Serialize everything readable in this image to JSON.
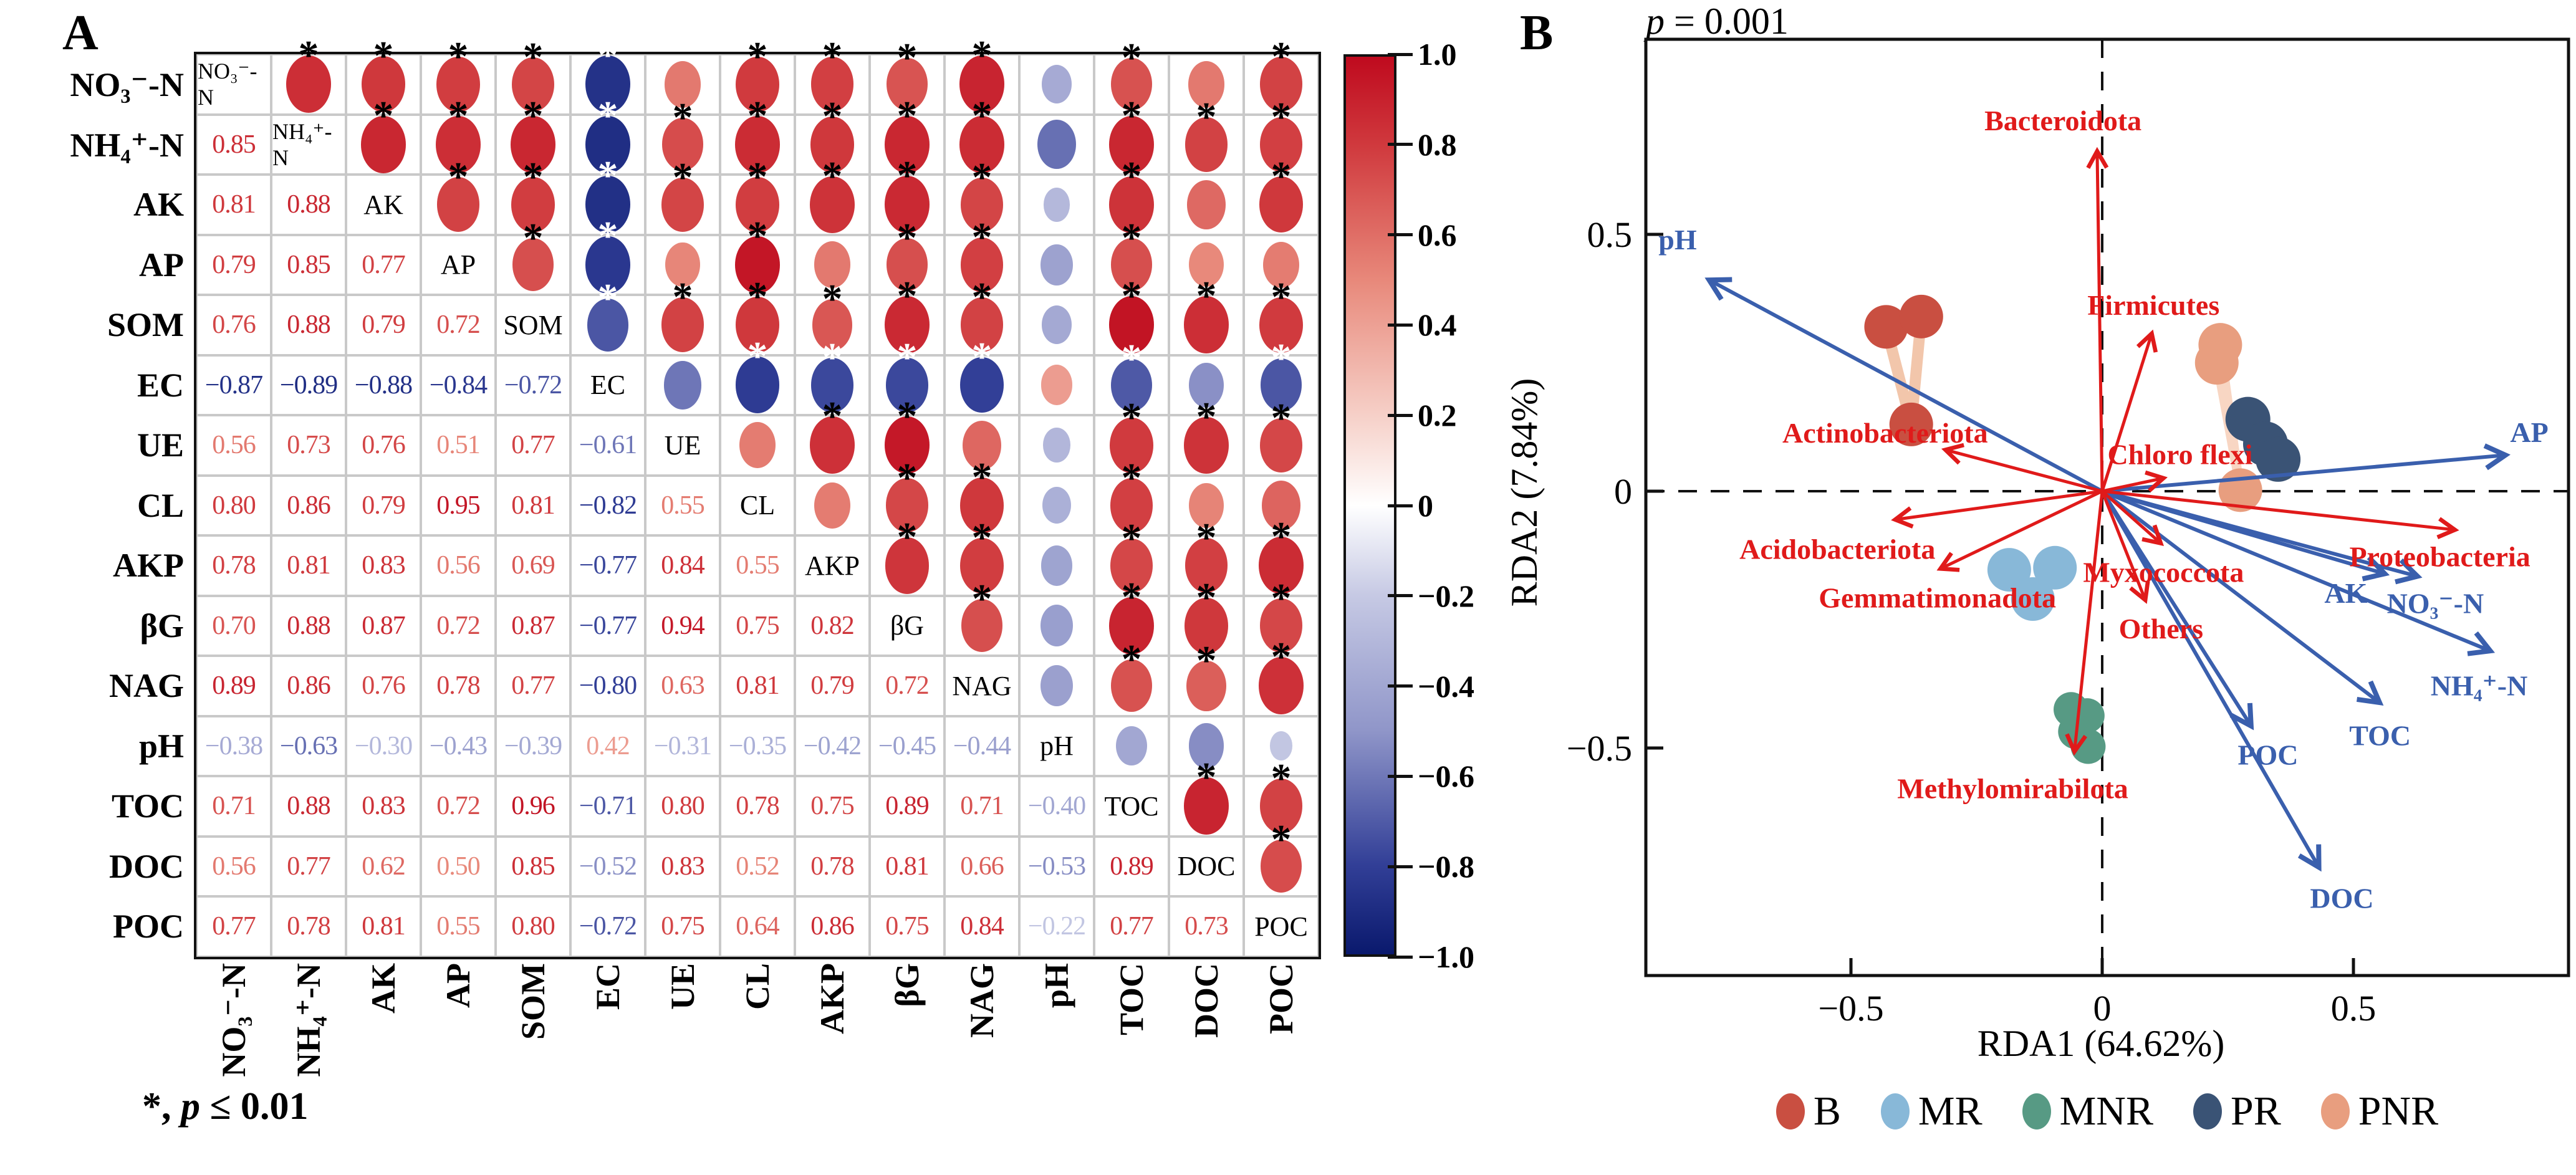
{
  "figure": {
    "panel_a_letter": "A",
    "panel_b_letter": "B"
  },
  "chart_data": [
    {
      "type": "heatmap",
      "name": "soil-property-correlation-matrix",
      "variables": [
        "NO₃⁻-N",
        "NH₄⁺-N",
        "AK",
        "AP",
        "SOM",
        "EC",
        "UE",
        "CL",
        "AKP",
        "βG",
        "NAG",
        "pH",
        "TOC",
        "DOC",
        "POC"
      ],
      "lower_triangle": [
        [],
        [
          0.85
        ],
        [
          0.81,
          0.88
        ],
        [
          0.79,
          0.85,
          0.77
        ],
        [
          0.76,
          0.88,
          0.79,
          0.72
        ],
        [
          -0.87,
          -0.89,
          -0.88,
          -0.84,
          -0.72
        ],
        [
          0.56,
          0.73,
          0.76,
          0.51,
          0.77,
          -0.61
        ],
        [
          0.8,
          0.86,
          0.79,
          0.95,
          0.81,
          -0.82,
          0.55
        ],
        [
          0.78,
          0.81,
          0.83,
          0.56,
          0.69,
          -0.77,
          0.84,
          0.55
        ],
        [
          0.7,
          0.88,
          0.87,
          0.72,
          0.87,
          -0.77,
          0.94,
          0.75,
          0.82
        ],
        [
          0.89,
          0.86,
          0.76,
          0.78,
          0.77,
          -0.8,
          0.63,
          0.81,
          0.79,
          0.72
        ],
        [
          -0.38,
          -0.63,
          -0.3,
          -0.43,
          -0.39,
          0.42,
          -0.31,
          -0.35,
          -0.42,
          -0.45,
          -0.44
        ],
        [
          0.71,
          0.88,
          0.83,
          0.72,
          0.96,
          -0.71,
          0.8,
          0.78,
          0.75,
          0.89,
          0.71,
          -0.4
        ],
        [
          0.56,
          0.77,
          0.62,
          0.5,
          0.85,
          -0.52,
          0.83,
          0.52,
          0.78,
          0.81,
          0.66,
          -0.53,
          0.89
        ],
        [
          0.77,
          0.78,
          0.81,
          0.55,
          0.8,
          -0.72,
          0.75,
          0.64,
          0.86,
          0.75,
          0.84,
          -0.22,
          0.77,
          0.73
        ]
      ],
      "sig_threshold": 0.66,
      "note_star": "*",
      "note_sep": ", ",
      "note_p": "p",
      "note_rest": " ≤ 0.01",
      "colorbar": {
        "min": -1,
        "max": 1,
        "stops": [
          {
            "v": 1,
            "c": "#bf0a1e"
          },
          {
            "v": 0.8,
            "c": "#d03a3e"
          },
          {
            "v": 0.5,
            "c": "#e8897b"
          },
          {
            "v": 0.2,
            "c": "#f6d0c8"
          },
          {
            "v": 0,
            "c": "#ffffff"
          },
          {
            "v": -0.2,
            "c": "#c6c9e4"
          },
          {
            "v": -0.5,
            "c": "#9096c9"
          },
          {
            "v": -0.8,
            "c": "#323f97"
          },
          {
            "v": -1,
            "c": "#0a196d"
          }
        ],
        "ticks": [
          {
            "v": 1,
            "label": "1.0"
          },
          {
            "v": 0.8,
            "label": "0.8"
          },
          {
            "v": 0.6,
            "label": "0.6"
          },
          {
            "v": 0.4,
            "label": "0.4"
          },
          {
            "v": 0.2,
            "label": "0.2"
          },
          {
            "v": 0,
            "label": "0"
          },
          {
            "v": -0.2,
            "label": "−0.2"
          },
          {
            "v": -0.4,
            "label": "−0.4"
          },
          {
            "v": -0.6,
            "label": "−0.6"
          },
          {
            "v": -0.8,
            "label": "−0.8"
          },
          {
            "v": -1,
            "label": "−1.0"
          }
        ]
      }
    },
    {
      "type": "scatter",
      "name": "rda-biplot",
      "title_p": "p",
      "title_rest": " = 0.001",
      "xlabel": "RDA1 (64.62%)",
      "ylabel": "RDA2 (7.84%)",
      "xlim": [
        -0.908,
        0.928
      ],
      "ylim": [
        -0.943,
        0.88
      ],
      "x_ticks": [
        {
          "v": -0.5,
          "label": "−0.5"
        },
        {
          "v": 0,
          "label": "0"
        },
        {
          "v": 0.5,
          "label": "0.5"
        }
      ],
      "y_ticks": [
        {
          "v": 0.5,
          "label": "0.5"
        },
        {
          "v": 0,
          "label": "0"
        },
        {
          "v": -0.5,
          "label": "−0.5"
        }
      ],
      "arrow_colors": {
        "env": "#3a5fad",
        "phyla": "#e01a1a"
      },
      "env_arrows": [
        {
          "name": "pH",
          "x": -0.78,
          "y": 0.41,
          "lx": -0.845,
          "ly": 0.49
        },
        {
          "name": "AP",
          "x": 0.8,
          "y": 0.07,
          "lx": 0.85,
          "ly": 0.115
        },
        {
          "name": "AK",
          "x": 0.56,
          "y": -0.16,
          "lx": 0.485,
          "ly": -0.198
        },
        {
          "name": "NO₃⁻-N",
          "x": 0.625,
          "y": -0.165,
          "lx": 0.663,
          "ly": -0.218
        },
        {
          "name": "NH₄⁺-N",
          "x": 0.77,
          "y": -0.31,
          "lx": 0.75,
          "ly": -0.378
        },
        {
          "name": "TOC",
          "x": 0.55,
          "y": -0.41,
          "lx": 0.553,
          "ly": -0.475
        },
        {
          "name": "POC",
          "x": 0.295,
          "y": -0.455,
          "lx": 0.33,
          "ly": -0.513
        },
        {
          "name": "DOC",
          "x": 0.43,
          "y": -0.73,
          "lx": 0.477,
          "ly": -0.792
        }
      ],
      "phyla_arrows": [
        {
          "name": "Bacteroidota",
          "x": -0.01,
          "y": 0.66,
          "lx": -0.078,
          "ly": 0.722
        },
        {
          "name": "Firmicutes",
          "x": 0.098,
          "y": 0.305,
          "lx": 0.102,
          "ly": 0.363
        },
        {
          "name": "Actinobacteriota",
          "x": -0.31,
          "y": 0.08,
          "lx": -0.432,
          "ly": 0.114
        },
        {
          "name": "Chloro flexi",
          "x": 0.12,
          "y": 0.025,
          "lx": 0.155,
          "ly": 0.072
        },
        {
          "name": "Proteobacteria",
          "x": 0.7,
          "y": -0.075,
          "lx": 0.672,
          "ly": -0.127
        },
        {
          "name": "Acidobacteriota",
          "x": -0.41,
          "y": -0.055,
          "lx": -0.527,
          "ly": -0.112
        },
        {
          "name": "Gemmatimonadota",
          "x": -0.32,
          "y": -0.15,
          "lx": -0.328,
          "ly": -0.207
        },
        {
          "name": "Myxococcota",
          "x": 0.115,
          "y": -0.1,
          "lx": 0.122,
          "ly": -0.157
        },
        {
          "name": "Others",
          "x": 0.085,
          "y": -0.21,
          "lx": 0.117,
          "ly": -0.267
        },
        {
          "name": "Methylomirabilota",
          "x": -0.055,
          "y": -0.505,
          "lx": -0.178,
          "ly": -0.578
        }
      ],
      "groups": [
        {
          "name": "B",
          "color": "#c94f41",
          "r": 35,
          "points": [
            [
              -0.43,
              0.32
            ],
            [
              -0.36,
              0.34
            ],
            [
              -0.38,
              0.13
            ]
          ],
          "spider": {
            "color": "#f2c6ab",
            "width": 18,
            "center": [
              -0.38,
              0.13
            ]
          }
        },
        {
          "name": "MR",
          "color": "#88b8d8",
          "r": 35,
          "points": [
            [
              -0.185,
              -0.153
            ],
            [
              -0.094,
              -0.149
            ],
            [
              -0.138,
              -0.21
            ]
          ]
        },
        {
          "name": "MNR",
          "color": "#579a84",
          "r": 28,
          "points": [
            [
              -0.062,
              -0.425
            ],
            [
              -0.03,
              -0.437
            ],
            [
              -0.053,
              -0.468
            ],
            [
              -0.028,
              -0.497
            ]
          ]
        },
        {
          "name": "PR",
          "color": "#3a5375",
          "r": 36,
          "points": [
            [
              0.29,
              0.14
            ],
            [
              0.325,
              0.092
            ],
            [
              0.35,
              0.062
            ]
          ]
        },
        {
          "name": "PNR",
          "color": "#e89e7f",
          "r": 35,
          "points": [
            [
              0.235,
              0.285
            ],
            [
              0.228,
              0.25
            ],
            [
              0.275,
              0.002
            ]
          ],
          "spider": {
            "color": "#f8d6c3",
            "width": 14,
            "center": [
              0.275,
              0.002
            ]
          }
        }
      ],
      "legend": [
        {
          "label": "B",
          "color": "#c94f41"
        },
        {
          "label": "MR",
          "color": "#88b8d8"
        },
        {
          "label": "MNR",
          "color": "#579a84"
        },
        {
          "label": "PR",
          "color": "#3a5375"
        },
        {
          "label": "PNR",
          "color": "#e89e7f"
        }
      ]
    }
  ]
}
